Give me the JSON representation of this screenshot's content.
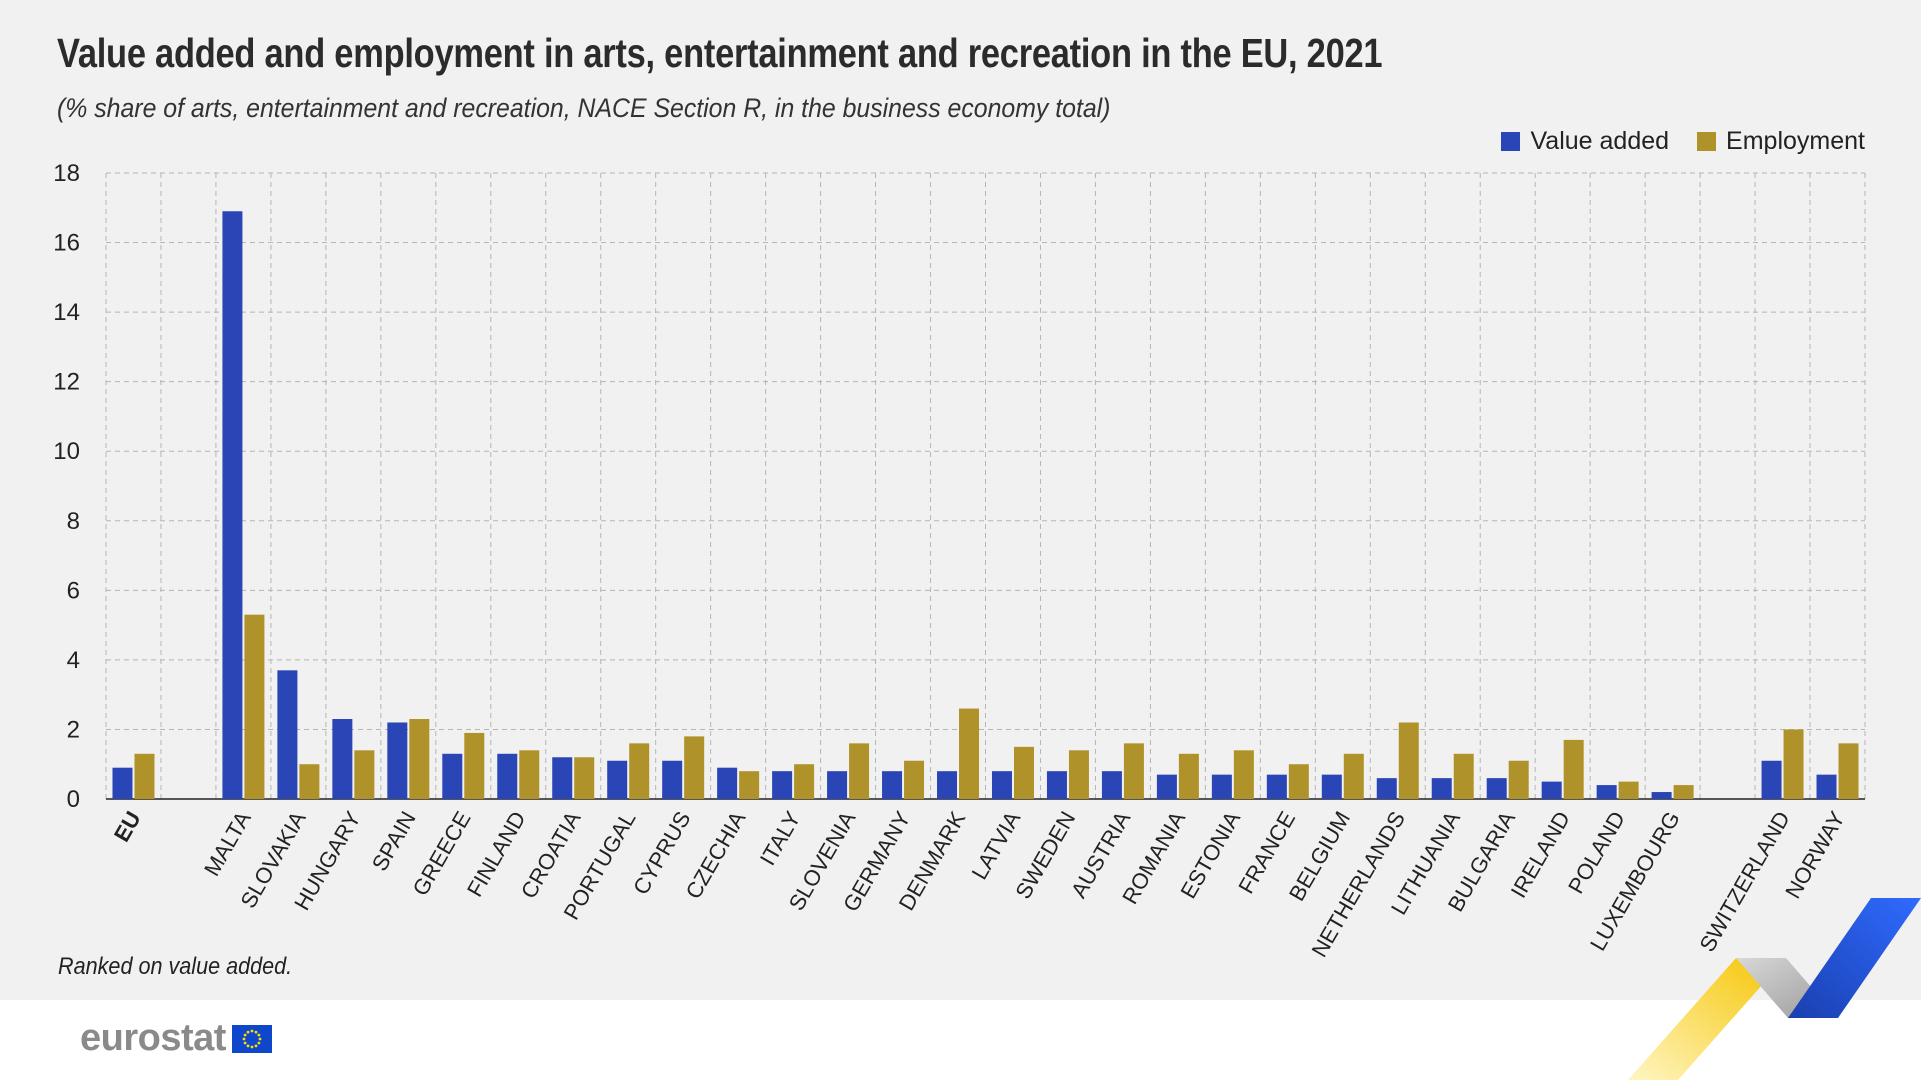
{
  "title": "Value added and employment in arts, entertainment and recreation in the EU, 2021",
  "subtitle": "(% share of arts, entertainment and recreation, NACE Section R, in the business economy total)",
  "footnote": "Ranked on value added.",
  "logo_text": "eurostat",
  "colors": {
    "value_added": "#2a45b5",
    "employment": "#b0922a",
    "panel_bg": "#f1f1f1",
    "grid": "#b5b5b5"
  },
  "legend": [
    {
      "label": "Value added",
      "color": "#2a45b5"
    },
    {
      "label": "Employment",
      "color": "#b0922a"
    }
  ],
  "chart_data": {
    "type": "bar",
    "title": "Value added and employment in arts, entertainment and recreation in the EU, 2021",
    "subtitle": "(% share of arts, entertainment and recreation, NACE Section R, in the business economy total)",
    "xlabel": "",
    "ylabel": "",
    "ylim": [
      0,
      18
    ],
    "yticks": [
      0,
      2,
      4,
      6,
      8,
      10,
      12,
      14,
      16,
      18
    ],
    "grid": true,
    "legend_position": "top-right",
    "categories": [
      "EU",
      "",
      "MALTA",
      "SLOVAKIA",
      "HUNGARY",
      "SPAIN",
      "GREECE",
      "FINLAND",
      "CROATIA",
      "PORTUGAL",
      "CYPRUS",
      "CZECHIA",
      "ITALY",
      "SLOVENIA",
      "GERMANY",
      "DENMARK",
      "LATVIA",
      "SWEDEN",
      "AUSTRIA",
      "ROMANIA",
      "ESTONIA",
      "FRANCE",
      "BELGIUM",
      "NETHERLANDS",
      "LITHUANIA",
      "BULGARIA",
      "IRELAND",
      "POLAND",
      "LUXEMBOURG",
      "",
      "SWITZERLAND",
      "NORWAY"
    ],
    "bold_categories": [
      "EU"
    ],
    "series": [
      {
        "name": "Value added",
        "color": "#2a45b5",
        "values": [
          0.9,
          null,
          16.9,
          3.7,
          2.3,
          2.2,
          1.3,
          1.3,
          1.2,
          1.1,
          1.1,
          0.9,
          0.8,
          0.8,
          0.8,
          0.8,
          0.8,
          0.8,
          0.8,
          0.7,
          0.7,
          0.7,
          0.7,
          0.6,
          0.6,
          0.6,
          0.5,
          0.4,
          0.2,
          null,
          1.1,
          0.7
        ]
      },
      {
        "name": "Employment",
        "color": "#b0922a",
        "values": [
          1.3,
          null,
          5.3,
          1.0,
          1.4,
          2.3,
          1.9,
          1.4,
          1.2,
          1.6,
          1.8,
          0.8,
          1.0,
          1.6,
          1.1,
          2.6,
          1.5,
          1.4,
          1.6,
          1.3,
          1.4,
          1.0,
          1.3,
          2.2,
          1.3,
          1.1,
          1.7,
          0.5,
          0.4,
          null,
          2.0,
          1.6
        ]
      }
    ]
  }
}
